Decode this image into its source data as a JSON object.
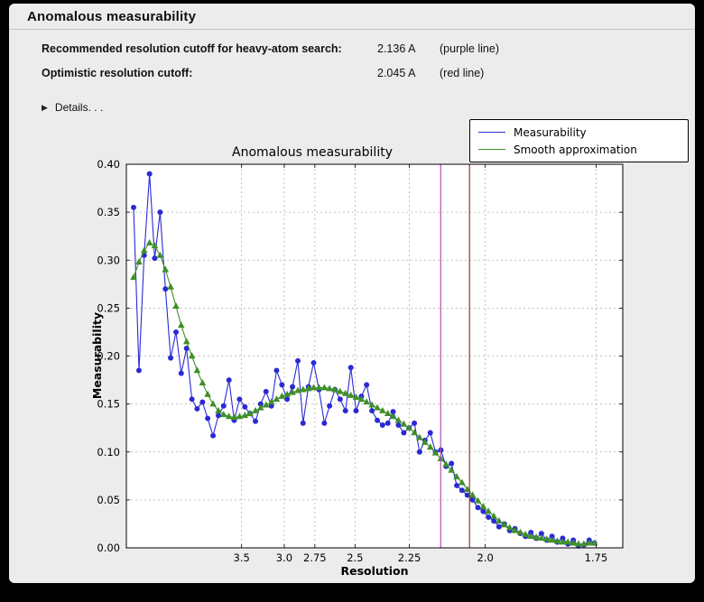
{
  "panel": {
    "title": "Anomalous measurability"
  },
  "info": {
    "rows": [
      {
        "label": "Recommended resolution cutoff for heavy-atom search:",
        "value": "2.136 A",
        "note": "(purple line)"
      },
      {
        "label": "Optimistic resolution cutoff:",
        "value": "2.045 A",
        "note": "(red line)"
      }
    ],
    "details_label": "Details. . ."
  },
  "chart_data": {
    "type": "line",
    "title": "Anomalous measurability",
    "xlabel": "Resolution",
    "ylabel": "Measurability",
    "x_scale": "inverse_resolution_squared",
    "xlim": [
      0.002,
      0.345
    ],
    "ylim": [
      0.0,
      0.4
    ],
    "xticks": [
      "3.5",
      "3.0",
      "2.75",
      "2.5",
      "2.25",
      "2.0",
      "1.75"
    ],
    "yticks": [
      0.0,
      0.05,
      0.1,
      0.15,
      0.2,
      0.25,
      0.3,
      0.35,
      0.4
    ],
    "grid": true,
    "plot_bg": "#ffffff",
    "grid_color": "#b0b0b0",
    "x": [
      0.007,
      0.0107,
      0.0143,
      0.018,
      0.0216,
      0.0253,
      0.029,
      0.0326,
      0.0363,
      0.0399,
      0.0436,
      0.0473,
      0.0509,
      0.0546,
      0.0582,
      0.0619,
      0.0656,
      0.0692,
      0.0729,
      0.0765,
      0.0802,
      0.0839,
      0.0875,
      0.0912,
      0.0948,
      0.0985,
      0.1022,
      0.1058,
      0.1095,
      0.1131,
      0.1168,
      0.1205,
      0.1241,
      0.1278,
      0.1314,
      0.1351,
      0.1388,
      0.1424,
      0.1461,
      0.1497,
      0.1534,
      0.1571,
      0.1607,
      0.1644,
      0.168,
      0.1717,
      0.1754,
      0.179,
      0.1827,
      0.1863,
      0.19,
      0.1937,
      0.1973,
      0.201,
      0.2046,
      0.2083,
      0.212,
      0.2156,
      0.2193,
      0.2229,
      0.2266,
      0.2303,
      0.2339,
      0.2376,
      0.2412,
      0.2449,
      0.2486,
      0.2522,
      0.2559,
      0.2595,
      0.2632,
      0.2669,
      0.2705,
      0.2742,
      0.2778,
      0.2815,
      0.2852,
      0.2888,
      0.2925,
      0.2961,
      0.2998,
      0.3035,
      0.3071,
      0.3108,
      0.3144,
      0.3181,
      0.3218,
      0.3254
    ],
    "series": [
      {
        "name": "Measurability",
        "color": "#2a2ad4",
        "marker": "circle",
        "values": [
          0.355,
          0.185,
          0.305,
          0.39,
          0.302,
          0.35,
          0.27,
          0.198,
          0.225,
          0.182,
          0.208,
          0.155,
          0.145,
          0.152,
          0.135,
          0.117,
          0.138,
          0.148,
          0.175,
          0.133,
          0.155,
          0.147,
          0.14,
          0.132,
          0.15,
          0.163,
          0.148,
          0.185,
          0.17,
          0.155,
          0.168,
          0.195,
          0.13,
          0.168,
          0.193,
          0.165,
          0.13,
          0.148,
          0.165,
          0.155,
          0.143,
          0.188,
          0.143,
          0.158,
          0.17,
          0.143,
          0.133,
          0.128,
          0.13,
          0.142,
          0.128,
          0.12,
          0.125,
          0.13,
          0.1,
          0.112,
          0.12,
          0.1,
          0.102,
          0.085,
          0.088,
          0.065,
          0.06,
          0.055,
          0.05,
          0.042,
          0.038,
          0.032,
          0.028,
          0.022,
          0.025,
          0.018,
          0.02,
          0.015,
          0.012,
          0.016,
          0.01,
          0.015,
          0.008,
          0.012,
          0.006,
          0.01,
          0.004,
          0.008,
          0.002,
          0.003,
          0.008,
          0.005
        ]
      },
      {
        "name": "Smooth approximation",
        "color": "#3f8f29",
        "marker": "triangle",
        "values": [
          0.282,
          0.298,
          0.31,
          0.318,
          0.315,
          0.305,
          0.29,
          0.272,
          0.252,
          0.232,
          0.215,
          0.2,
          0.185,
          0.172,
          0.16,
          0.15,
          0.143,
          0.139,
          0.137,
          0.136,
          0.137,
          0.138,
          0.14,
          0.143,
          0.146,
          0.149,
          0.152,
          0.155,
          0.158,
          0.16,
          0.162,
          0.164,
          0.165,
          0.166,
          0.167,
          0.167,
          0.167,
          0.166,
          0.165,
          0.163,
          0.161,
          0.159,
          0.157,
          0.155,
          0.152,
          0.149,
          0.146,
          0.143,
          0.14,
          0.137,
          0.133,
          0.129,
          0.125,
          0.12,
          0.115,
          0.11,
          0.105,
          0.099,
          0.093,
          0.087,
          0.081,
          0.074,
          0.068,
          0.061,
          0.055,
          0.049,
          0.043,
          0.038,
          0.033,
          0.028,
          0.024,
          0.021,
          0.018,
          0.016,
          0.014,
          0.012,
          0.011,
          0.01,
          0.009,
          0.008,
          0.007,
          0.006,
          0.006,
          0.005,
          0.004,
          0.004,
          0.005,
          0.005
        ]
      }
    ],
    "vlines": [
      {
        "name": "recommended-cutoff",
        "resolution": 2.136,
        "color": "#b04fb4"
      },
      {
        "name": "optimistic-cutoff",
        "resolution": 2.045,
        "color": "#9a3324"
      }
    ],
    "legend": {
      "position": "top-right",
      "entries": [
        "Measurability",
        "Smooth approximation"
      ]
    }
  }
}
